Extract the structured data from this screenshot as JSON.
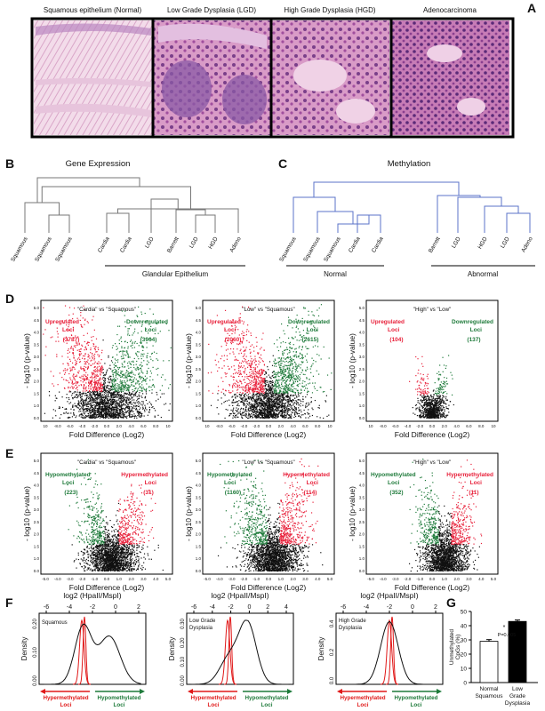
{
  "panels": {
    "A": {
      "letter": "A",
      "titles": [
        "Squamous epithelium (Normal)",
        "Low Grade Dysplasia (LGD)",
        "High Grade Dysplasia (HGD)",
        "Adenocarcinoma"
      ]
    },
    "B": {
      "letter": "B",
      "title": "Gene Expression",
      "leaves": [
        "Squamous",
        "Squamous",
        "Squamous",
        "Cardia",
        "Cardia",
        "LGD",
        "Barrett",
        "LGD",
        "HGD",
        "Adeno"
      ],
      "group_label": "Glandular Epithelium"
    },
    "C": {
      "letter": "C",
      "title": "Methylation",
      "leaves": [
        "Squamous",
        "Squamous",
        "Squamous",
        "Cardia",
        "Cardia",
        "Barrett",
        "LGD",
        "HGD",
        "LGD",
        "Adeno"
      ],
      "groups": [
        "Normal",
        "Abnormal"
      ]
    },
    "D": {
      "letter": "D",
      "ylabel": "- log10 (p-value)",
      "xlabel": "Fold Difference (Log2)",
      "plots": [
        {
          "title": "\"Cardia\" vs \"Squamous\"",
          "up_label": "Upregulated Loci",
          "up_count": "(3787)",
          "down_label": "Downregulated Loci",
          "down_count": "(3964)"
        },
        {
          "title": "\"Low\" vs \"Squamous\"",
          "up_label": "Upregulated Loci",
          "up_count": "(2060)",
          "down_label": "Downregulated Loci",
          "down_count": "(2615)"
        },
        {
          "title": "\"High\" vs \"Low\"",
          "up_label": "Upregulated Loci",
          "up_count": "(104)",
          "down_label": "Downregulated Loci",
          "down_count": "(137)"
        }
      ],
      "yticks": [
        "0.0",
        "1.0",
        "1.5",
        "2.0",
        "2.5",
        "3.0",
        "3.5",
        "4.0",
        "4.5",
        "5.0"
      ],
      "xticks": [
        "10",
        "-8.0",
        "-6.0",
        "-4.0",
        "-2.0",
        "0.0",
        "2.0",
        "4.0",
        "6.0",
        "8.0",
        "10"
      ]
    },
    "E": {
      "letter": "E",
      "ylabel": "- log10 (p-value)",
      "xlabel": "Fold Difference (Log2)",
      "plots": [
        {
          "title": "\"Cardia\" vs \"Squamous\"",
          "hypo_label": "Hypomethylated Loci",
          "hypo_count": "(223)",
          "hyper_label": "Hypermethylated Loci",
          "hyper_count": "(31)"
        },
        {
          "title": "\"Low\" vs \"Squamous\"",
          "hypo_label": "Hypomethylated Loci",
          "hypo_count": "(1160)",
          "hyper_label": "Hypermethylated Loci",
          "hyper_count": "(114)"
        },
        {
          "title": "\"High\" vs \"Low\"",
          "hypo_label": "Hypomethylated Loci",
          "hypo_count": "(352)",
          "hyper_label": "Hypermethylated Loci",
          "hyper_count": "(11)"
        }
      ],
      "yticks": [
        "0.0",
        "1.0",
        "1.5",
        "2.0",
        "2.5",
        "3.0",
        "3.5",
        "4.0",
        "4.5",
        "5.0"
      ],
      "xticks": [
        "-5.0",
        "-4.0",
        "-3.0",
        "-2.0",
        "-1.0",
        "0.0",
        "1.0",
        "2.0",
        "3.0",
        "4.0",
        "5.0"
      ]
    },
    "F": {
      "letter": "F",
      "top_label": "log2 (HpaII/MspI)",
      "ylabel": "Density",
      "hyper_label": "Hypermethylated Loci",
      "hypo_label": "Hypomethylated Loci",
      "plots": [
        {
          "name": "Squamous",
          "xticks": [
            "-6",
            "-4",
            "-2",
            "0",
            "2"
          ],
          "yticks": [
            "0.00",
            "0.10",
            "0.20"
          ]
        },
        {
          "name": "Low Grade Dysplasia",
          "xticks": [
            "-6",
            "-4",
            "-2",
            "0",
            "2",
            "4"
          ],
          "yticks": [
            "0.00",
            "0.10",
            "0.20",
            "0.30"
          ]
        },
        {
          "name": "High Grade Dysplasia",
          "xticks": [
            "-6",
            "-4",
            "-2",
            "0",
            "2"
          ],
          "yticks": [
            "0.0",
            "0.2",
            "0.4"
          ]
        }
      ]
    },
    "G": {
      "letter": "G"
    }
  },
  "colors": {
    "up_red": "#e8203a",
    "down_green": "#1e7a3a",
    "dendro_blue": "#5b73c8",
    "dendro_gray": "#777777",
    "point_black": "#111111",
    "curve_red": "#e01818"
  },
  "chart_data": [
    {
      "type": "bar",
      "title": "",
      "ylabel": "Unmethylated CpGs (%)",
      "categories": [
        "Normal Squamous",
        "Low Grade Dysplasia"
      ],
      "values": [
        29,
        43
      ],
      "errors": [
        1.2,
        1.0
      ],
      "fills": [
        "#ffffff",
        "#000000"
      ],
      "ylim": [
        0,
        50
      ],
      "yticks": [
        0,
        10,
        20,
        30,
        40,
        50
      ],
      "annotation": "P=0.005",
      "star": "*"
    }
  ]
}
